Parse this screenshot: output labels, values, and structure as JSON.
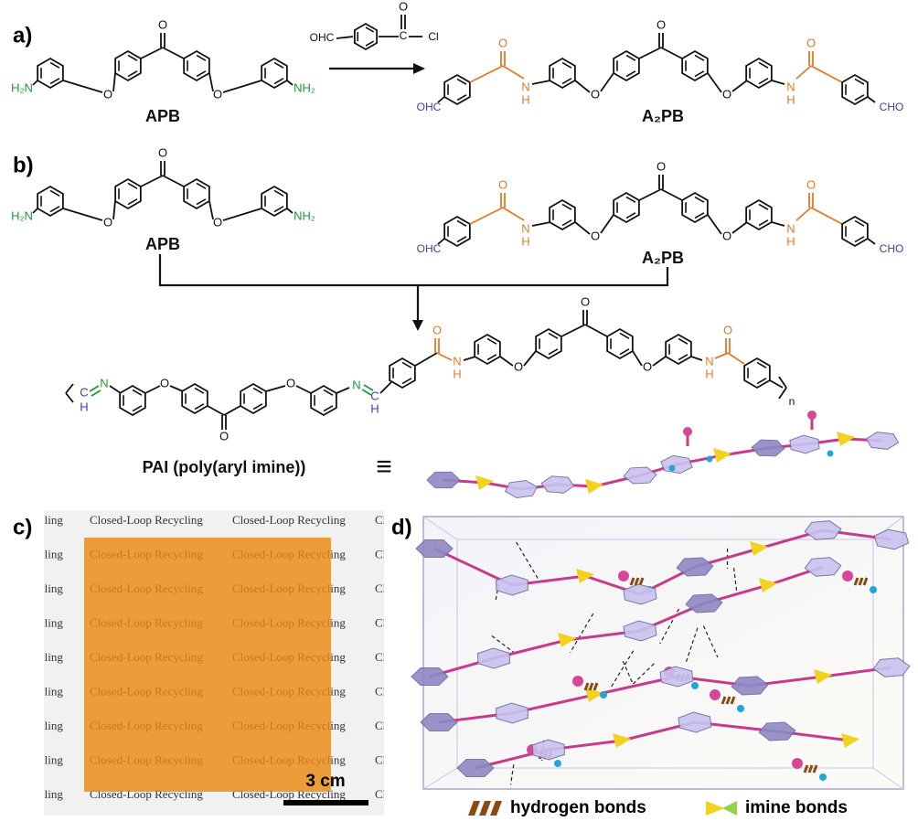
{
  "panels": {
    "a": "a)",
    "b": "b)",
    "c": "c)",
    "d": "d)"
  },
  "molecules": {
    "apb": "APB",
    "a2pb": "A₂PB",
    "pai": "PAI (poly(aryl imine))",
    "equiv": "≡",
    "repeat": "n"
  },
  "atoms": {
    "amine_left": "H₂N",
    "amine_right": "NH₂",
    "aldehyde_left": "OHC",
    "aldehyde_right": "CHO",
    "oxygen": "O",
    "carbon": "C",
    "chlorine": "Cl",
    "nitrogen": "N",
    "hydrogen": "H"
  },
  "photo": {
    "watermark": "Closed-Loop Recycling",
    "scale": "3 cm"
  },
  "legend": {
    "hydrogen": "hydrogen bonds",
    "imine": "imine bonds"
  }
}
